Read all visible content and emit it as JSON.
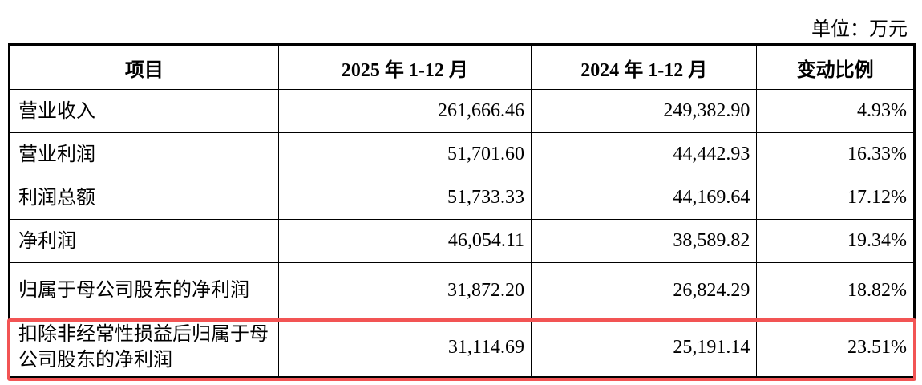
{
  "unit_label": "单位：万元",
  "headers": [
    "项目",
    "2025 年 1-12 月",
    "2024 年 1-12 月",
    "变动比例"
  ],
  "rows": [
    {
      "item": "营业收入",
      "y2025": "261,666.46",
      "y2024": "249,382.90",
      "change": "4.93%"
    },
    {
      "item": "营业利润",
      "y2025": "51,701.60",
      "y2024": "44,442.93",
      "change": "16.33%"
    },
    {
      "item": "利润总额",
      "y2025": "51,733.33",
      "y2024": "44,169.64",
      "change": "17.12%"
    },
    {
      "item": "净利润",
      "y2025": "46,054.11",
      "y2024": "38,589.82",
      "change": "19.34%"
    },
    {
      "item": "归属于母公司股东的净利润",
      "y2025": "31,872.20",
      "y2024": "26,824.29",
      "change": "18.82%"
    },
    {
      "item": "扣除非经常性损益后归属于母公司股东的净利润",
      "y2025": "31,114.69",
      "y2024": "25,191.14",
      "change": "23.51%"
    }
  ],
  "highlight_color": "#f25454"
}
